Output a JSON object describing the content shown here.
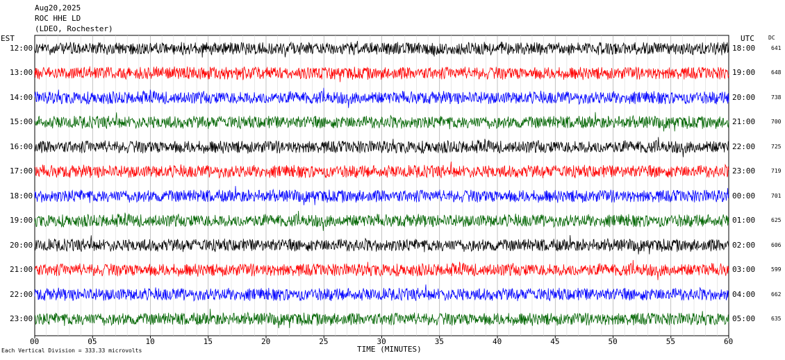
{
  "header": {
    "date": "Aug20,2025",
    "station": "ROC HHE LD",
    "network": "(LDEO, Rochester)"
  },
  "left_tz": "EST",
  "right_tz": "UTC",
  "dc_header": "DC",
  "footer": "Each Vertical Division =  333.33 microvolts",
  "chart_data": {
    "type": "line",
    "xlabel": "TIME (MINUTES)",
    "xlim": [
      0,
      60
    ],
    "x_ticks": [
      "00",
      "05",
      "10",
      "15",
      "20",
      "25",
      "30",
      "35",
      "40",
      "45",
      "50",
      "55",
      "60"
    ],
    "trace_colors": [
      "#000000",
      "#ff0000",
      "#0000ff",
      "#006400"
    ],
    "rows": [
      {
        "local": "12:00",
        "utc": "18:00",
        "dc": "641",
        "color": "#000000"
      },
      {
        "local": "13:00",
        "utc": "19:00",
        "dc": "648",
        "color": "#ff0000"
      },
      {
        "local": "14:00",
        "utc": "20:00",
        "dc": "738",
        "color": "#0000ff"
      },
      {
        "local": "15:00",
        "utc": "21:00",
        "dc": "700",
        "color": "#006400"
      },
      {
        "local": "16:00",
        "utc": "22:00",
        "dc": "725",
        "color": "#000000"
      },
      {
        "local": "17:00",
        "utc": "23:00",
        "dc": "719",
        "color": "#ff0000"
      },
      {
        "local": "18:00",
        "utc": "00:00",
        "dc": "701",
        "color": "#0000ff"
      },
      {
        "local": "19:00",
        "utc": "01:00",
        "dc": "625",
        "color": "#006400"
      },
      {
        "local": "20:00",
        "utc": "02:00",
        "dc": "606",
        "color": "#000000"
      },
      {
        "local": "21:00",
        "utc": "03:00",
        "dc": "599",
        "color": "#ff0000"
      },
      {
        "local": "22:00",
        "utc": "04:00",
        "dc": "662",
        "color": "#0000ff"
      },
      {
        "local": "23:00",
        "utc": "05:00",
        "dc": "635",
        "color": "#006400"
      }
    ]
  }
}
